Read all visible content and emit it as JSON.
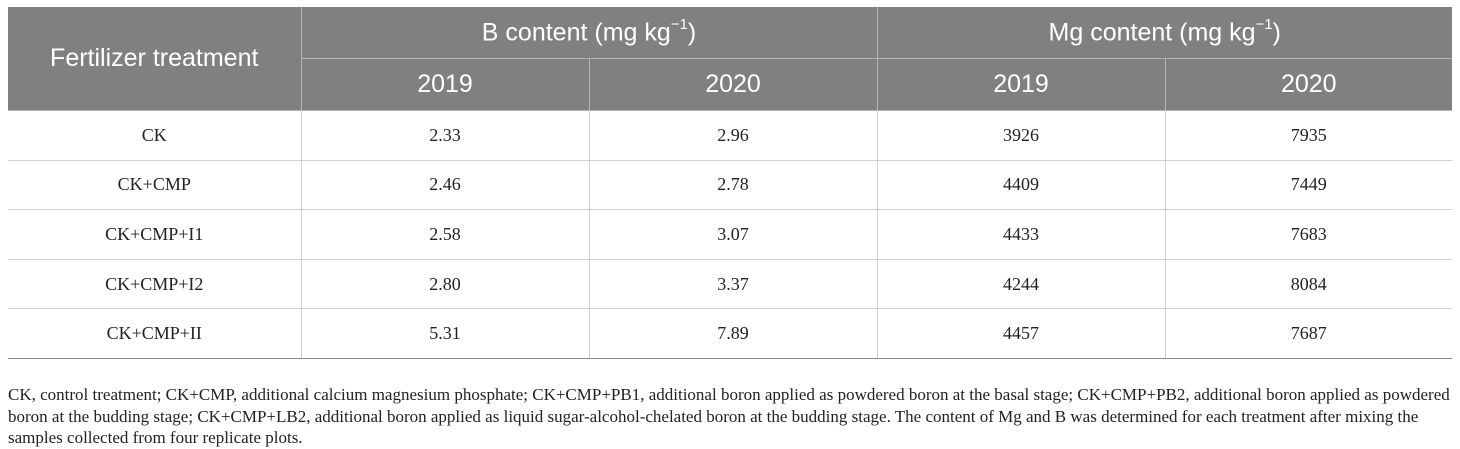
{
  "table": {
    "header": {
      "treatment": "Fertilizer treatment",
      "b_content_prefix": "B content (mg kg",
      "b_content_sup": "−1",
      "b_content_suffix": ")",
      "mg_content_prefix": "Mg content (mg kg",
      "mg_content_sup": "−1",
      "mg_content_suffix": ")",
      "b_2019": "2019",
      "b_2020": "2020",
      "mg_2019": "2019",
      "mg_2020": "2020"
    },
    "rows": [
      {
        "treatment": "CK",
        "b_2019": "2.33",
        "b_2020": "2.96",
        "mg_2019": "3926",
        "mg_2020": "7935"
      },
      {
        "treatment": "CK+CMP",
        "b_2019": "2.46",
        "b_2020": "2.78",
        "mg_2019": "4409",
        "mg_2020": "7449"
      },
      {
        "treatment": "CK+CMP+I1",
        "b_2019": "2.58",
        "b_2020": "3.07",
        "mg_2019": "4433",
        "mg_2020": "7683"
      },
      {
        "treatment": "CK+CMP+I2",
        "b_2019": "2.80",
        "b_2020": "3.37",
        "mg_2019": "4244",
        "mg_2020": "8084"
      },
      {
        "treatment": "CK+CMP+II",
        "b_2019": "5.31",
        "b_2020": "7.89",
        "mg_2019": "4457",
        "mg_2020": "7687"
      }
    ]
  },
  "footnote": "CK, control treatment; CK+CMP, additional calcium magnesium phosphate; CK+CMP+PB1, additional boron applied as powdered boron at the basal stage; CK+CMP+PB2, additional boron applied as powdered boron at the budding stage; CK+CMP+LB2, additional boron applied as liquid sugar-alcohol-chelated boron at the budding stage. The content of Mg and B was determined for each treatment after mixing the samples collected from four replicate plots."
}
